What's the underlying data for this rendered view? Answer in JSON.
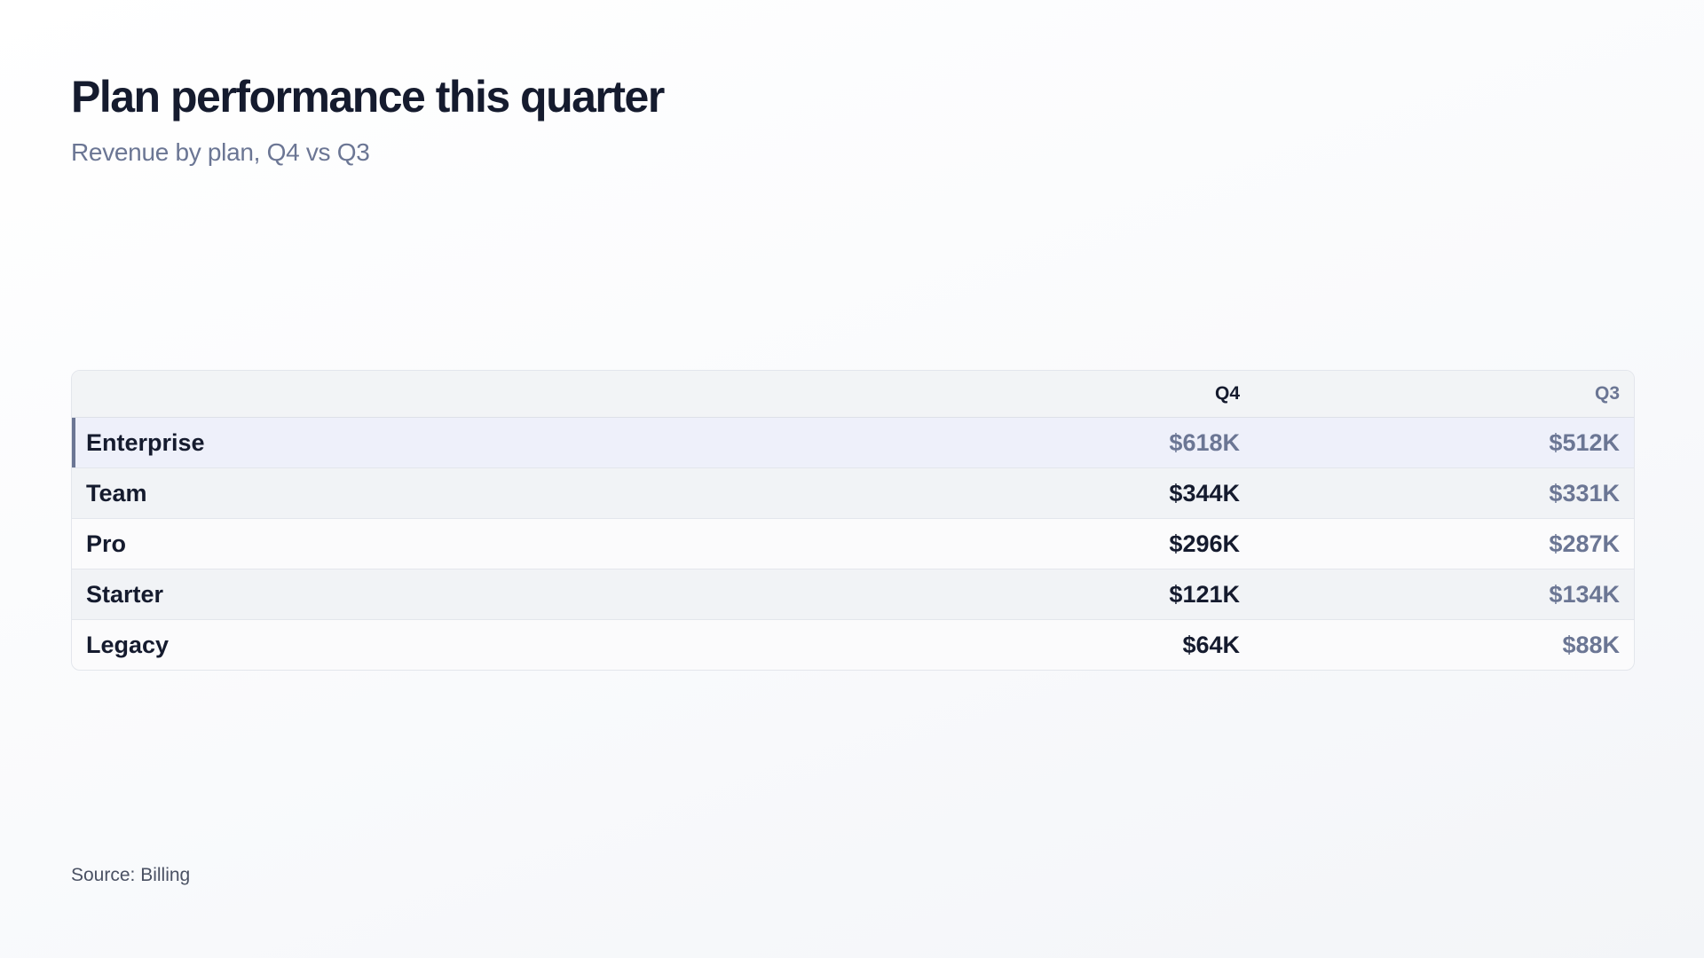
{
  "header": {
    "title": "Plan performance this quarter",
    "subtitle": "Revenue by plan, Q4 vs Q3"
  },
  "table": {
    "columns": [
      "Q4",
      "Q3"
    ],
    "rows": [
      {
        "plan": "Enterprise",
        "values": [
          "$618K",
          "$512K"
        ],
        "highlight": true
      },
      {
        "plan": "Team",
        "values": [
          "$344K",
          "$331K"
        ]
      },
      {
        "plan": "Pro",
        "values": [
          "$296K",
          "$287K"
        ]
      },
      {
        "plan": "Starter",
        "values": [
          "$121K",
          "$134K"
        ]
      },
      {
        "plan": "Legacy",
        "values": [
          "$64K",
          "$88K"
        ]
      }
    ]
  },
  "footer": {
    "source": "Source: Billing"
  }
}
